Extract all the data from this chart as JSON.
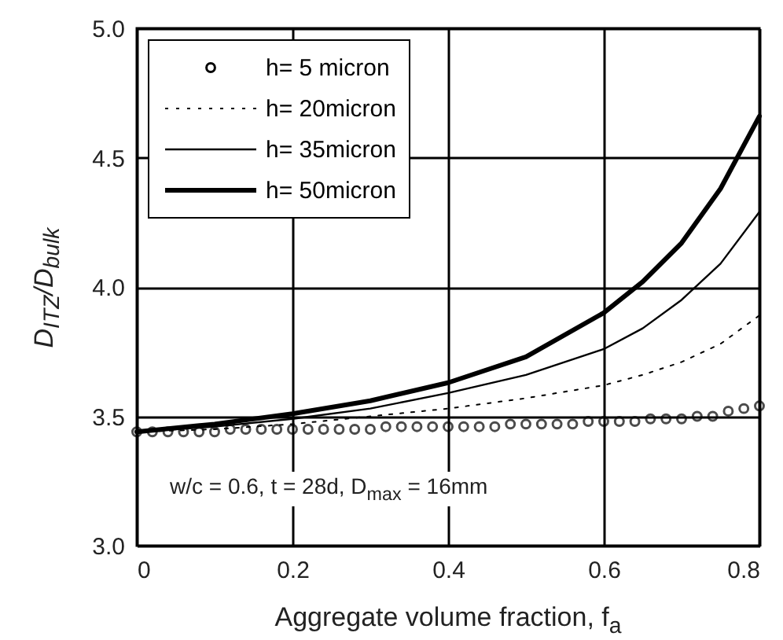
{
  "chart_data": {
    "type": "line",
    "xlabel": "Aggregate volume fraction, f$_{a}$",
    "ylabel": "D$_{ITZ}$/D$_{bulk}$",
    "annotations": [
      "w/c = 0.6, t = 28d, D$_{max}$ = 16mm"
    ],
    "xlim": [
      0,
      0.8
    ],
    "xticks": [
      0,
      0.2,
      0.4,
      0.6,
      0.8
    ],
    "ylim": [
      3,
      5
    ],
    "yticks": [
      {
        "value": 3,
        "label": "3.0"
      },
      3.5,
      {
        "value": 4,
        "label": "4.0"
      },
      4.5,
      {
        "value": 5,
        "label": "5.0"
      }
    ],
    "grid": true,
    "legend": "top left",
    "series": [
      {
        "name": "h= 5 micron",
        "type": "scatter",
        "marker": "circle",
        "color": "#000000",
        "x": [
          0,
          0.02,
          0.04,
          0.06,
          0.08,
          0.1,
          0.12,
          0.14,
          0.16,
          0.18,
          0.2,
          0.22,
          0.24,
          0.26,
          0.28,
          0.3,
          0.32,
          0.34,
          0.36,
          0.38,
          0.4,
          0.42,
          0.44,
          0.46,
          0.48,
          0.5,
          0.52,
          0.54,
          0.56,
          0.58,
          0.6,
          0.62,
          0.64,
          0.66,
          0.68,
          0.7,
          0.72,
          0.74,
          0.76,
          0.78,
          0.8
        ],
        "values": [
          3.44,
          3.44,
          3.44,
          3.44,
          3.44,
          3.44,
          3.45,
          3.45,
          3.45,
          3.45,
          3.45,
          3.45,
          3.45,
          3.45,
          3.45,
          3.45,
          3.46,
          3.46,
          3.46,
          3.46,
          3.46,
          3.46,
          3.46,
          3.46,
          3.47,
          3.47,
          3.47,
          3.47,
          3.47,
          3.48,
          3.48,
          3.48,
          3.48,
          3.49,
          3.49,
          3.49,
          3.5,
          3.5,
          3.52,
          3.53,
          3.54
        ]
      },
      {
        "name": "h= 20micron",
        "line_style": "dotted",
        "color": "#000000",
        "x": [
          0,
          0.1,
          0.2,
          0.3,
          0.4,
          0.5,
          0.6,
          0.65,
          0.7,
          0.75,
          0.8
        ],
        "values": [
          3.44,
          3.45,
          3.47,
          3.5,
          3.53,
          3.57,
          3.62,
          3.66,
          3.71,
          3.78,
          3.89
        ]
      },
      {
        "name": "h= 35micron",
        "line_style": "solid",
        "color": "#000000",
        "x": [
          0,
          0.1,
          0.2,
          0.3,
          0.4,
          0.5,
          0.6,
          0.65,
          0.7,
          0.75,
          0.8
        ],
        "values": [
          3.44,
          3.46,
          3.49,
          3.53,
          3.59,
          3.66,
          3.76,
          3.84,
          3.95,
          4.09,
          4.29
        ]
      },
      {
        "name": "h= 50micron",
        "line_style": "solid",
        "color": "#000000",
        "x": [
          0,
          0.1,
          0.2,
          0.3,
          0.4,
          0.5,
          0.6,
          0.65,
          0.7,
          0.75,
          0.8
        ],
        "values": [
          3.44,
          3.47,
          3.51,
          3.56,
          3.63,
          3.73,
          3.9,
          4.02,
          4.17,
          4.38,
          4.66
        ]
      }
    ]
  }
}
